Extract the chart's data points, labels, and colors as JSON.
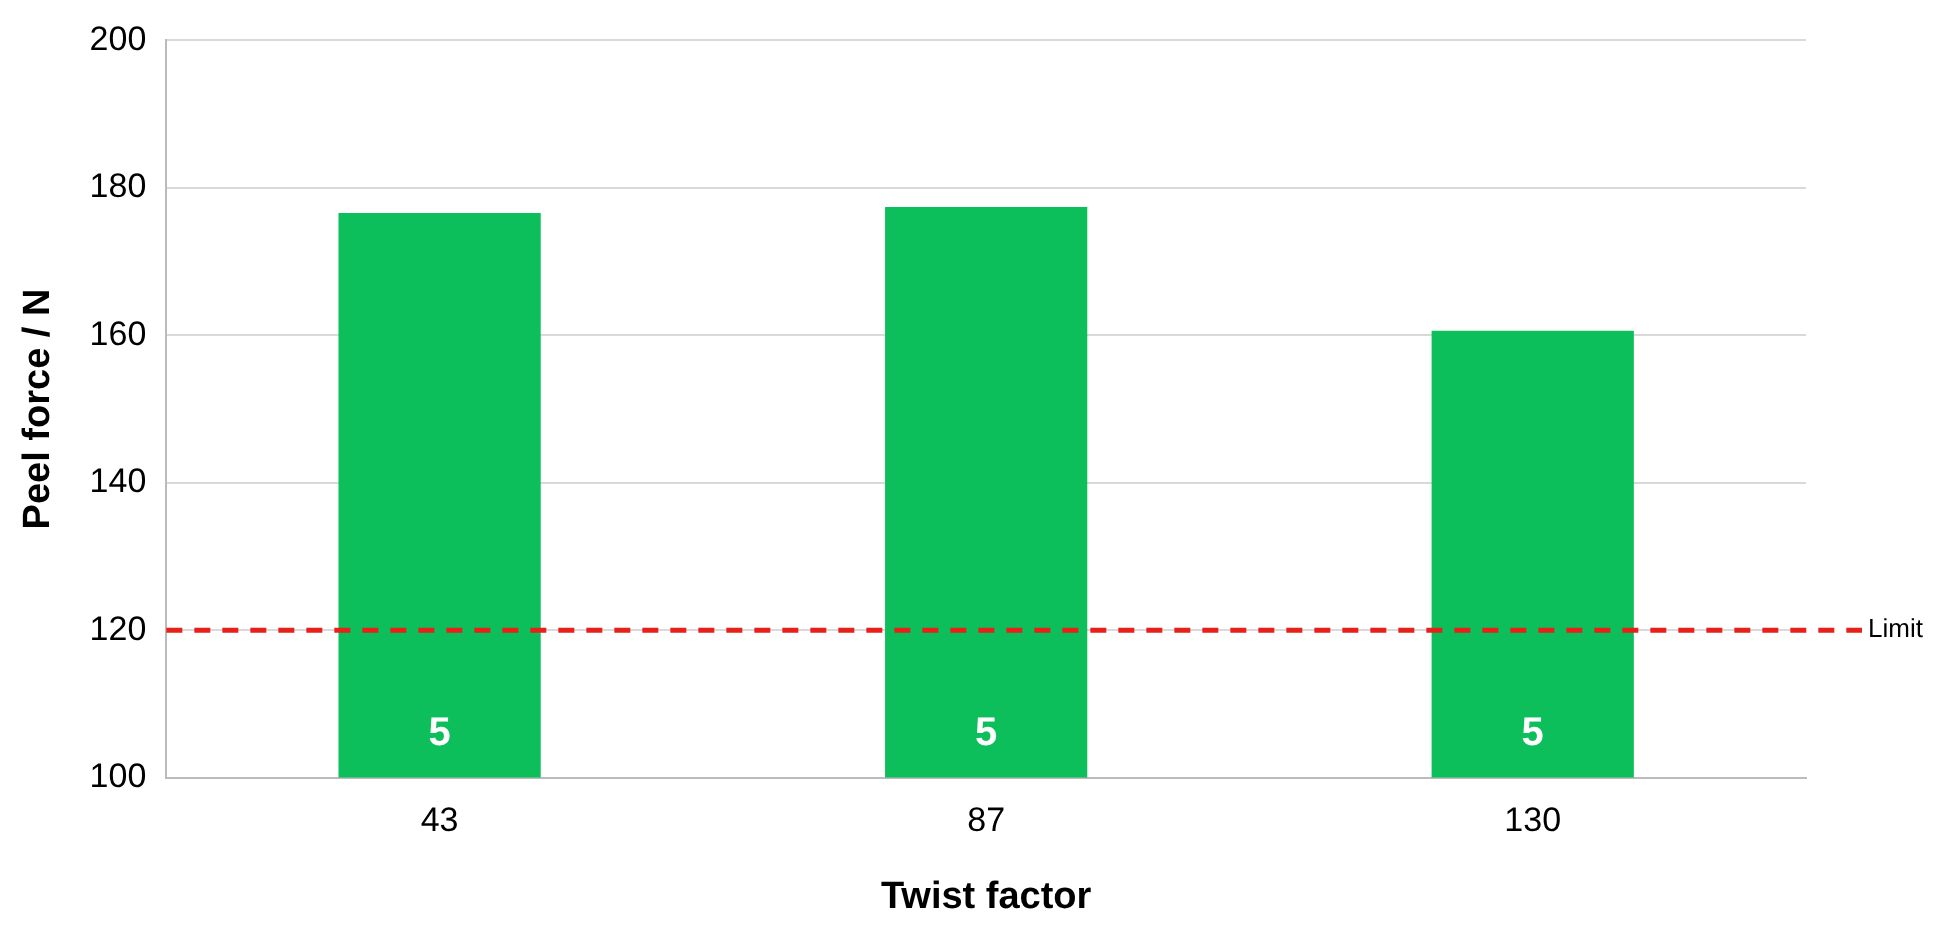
{
  "chart_data": {
    "type": "bar",
    "xlabel": "Twist factor",
    "ylabel": "Peel force / N",
    "categories": [
      "43",
      "87",
      "130"
    ],
    "values": [
      176.6,
      177.4,
      160.6
    ],
    "color": "#0cbf5a",
    "ylim": [
      100,
      200
    ],
    "yticks": [
      100,
      120,
      140,
      160,
      180,
      200
    ],
    "grid": "y",
    "legend": false,
    "ref_lines": [
      {
        "axis": "y",
        "value": 120,
        "label": "Limit",
        "color": "#e8201a",
        "line_style": "dashed"
      }
    ],
    "annotations": [
      "5",
      "5",
      "5"
    ]
  }
}
